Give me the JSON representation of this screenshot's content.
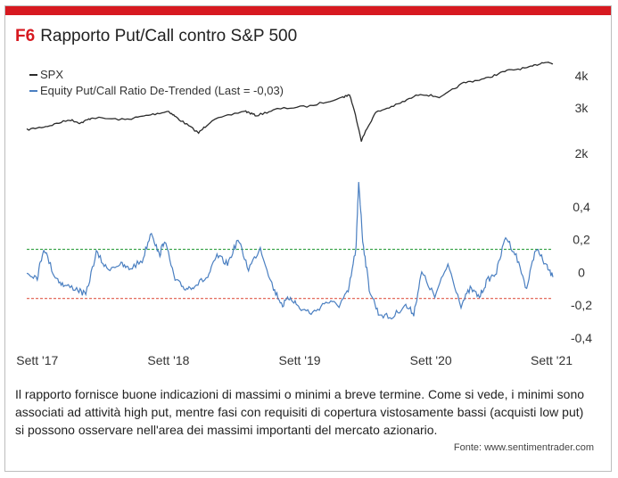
{
  "figure": {
    "label": "F6",
    "title": "Rapporto Put/Call contro S&P 500"
  },
  "caption": "Il rapporto fornisce buone indicazioni di massimi o minimi a breve termine. Come si vede, i minimi sono associati ad attività high put, mentre fasi con requisiti di copertura vistosamente bassi (acquisti low put) si possono osservare nell'area dei massimi importanti del mercato azionario.",
  "source": "Fonte: www.sentimentrader.com",
  "colors": {
    "accent": "#d71920",
    "spx": "#2b2b2b",
    "ratio": "#4a7fc1",
    "upper_line": "#2e9e3e",
    "lower_line": "#e05a4a"
  },
  "chart_data": [
    {
      "type": "line",
      "panel": "top",
      "legend": [
        "SPX"
      ],
      "ytick_labels": [
        "4k",
        "3k",
        "2k"
      ],
      "yticks": [
        4000,
        3000,
        2000
      ],
      "ylim": [
        2000,
        4500
      ],
      "y_scale": "log",
      "series": [
        {
          "name": "SPX",
          "x": [
            2017.67,
            2017.83,
            2018.0,
            2018.08,
            2018.17,
            2018.42,
            2018.58,
            2018.75,
            2018.83,
            2018.98,
            2019.08,
            2019.33,
            2019.42,
            2019.58,
            2019.83,
            2020.08,
            2020.13,
            2020.22,
            2020.33,
            2020.5,
            2020.67,
            2020.83,
            2021.0,
            2021.17,
            2021.33,
            2021.5,
            2021.62,
            2021.68
          ],
          "values": [
            2470,
            2550,
            2700,
            2620,
            2750,
            2700,
            2800,
            2910,
            2710,
            2400,
            2680,
            2920,
            2800,
            2970,
            3050,
            3300,
            3380,
            2240,
            2880,
            3100,
            3400,
            3300,
            3750,
            3900,
            4180,
            4300,
            4530,
            4450
          ]
        }
      ]
    },
    {
      "type": "line",
      "panel": "bottom",
      "legend": [
        "Equity Put/Call Ratio De-Trended (Last = -0,03)"
      ],
      "ytick_labels": [
        "0,4",
        "0,2",
        "0",
        "-0,2",
        "-0,4"
      ],
      "yticks": [
        0.4,
        0.2,
        0,
        -0.2,
        -0.4
      ],
      "ylim": [
        -0.45,
        0.6
      ],
      "hlines": [
        0.14,
        -0.16
      ],
      "xticks": [
        "Sett '17",
        "Sett '18",
        "Sett '19",
        "Sett '20",
        "Sett '21"
      ],
      "series": [
        {
          "name": "Equity Put/Call Ratio De-Trended (Last = -0,03)",
          "x": [
            2017.67,
            2017.75,
            2017.8,
            2017.88,
            2017.95,
            2018.05,
            2018.12,
            2018.2,
            2018.28,
            2018.38,
            2018.45,
            2018.55,
            2018.62,
            2018.68,
            2018.72,
            2018.8,
            2018.88,
            2018.95,
            2019.05,
            2019.12,
            2019.2,
            2019.28,
            2019.36,
            2019.45,
            2019.55,
            2019.62,
            2019.68,
            2019.75,
            2019.85,
            2019.95,
            2020.05,
            2020.12,
            2020.18,
            2020.2,
            2020.23,
            2020.28,
            2020.35,
            2020.45,
            2020.55,
            2020.62,
            2020.68,
            2020.78,
            2020.88,
            2020.98,
            2021.05,
            2021.12,
            2021.18,
            2021.25,
            2021.32,
            2021.4,
            2021.48,
            2021.55,
            2021.62,
            2021.68
          ],
          "values": [
            0.0,
            -0.03,
            0.15,
            -0.02,
            -0.08,
            -0.1,
            -0.14,
            0.12,
            0.02,
            0.05,
            0.02,
            0.07,
            0.25,
            0.1,
            0.2,
            -0.05,
            -0.1,
            -0.08,
            -0.03,
            0.1,
            0.05,
            0.2,
            0.02,
            0.15,
            -0.1,
            -0.2,
            -0.15,
            -0.22,
            -0.25,
            -0.18,
            -0.2,
            -0.12,
            0.15,
            0.56,
            0.2,
            -0.1,
            -0.25,
            -0.28,
            -0.2,
            -0.25,
            0.0,
            -0.15,
            0.05,
            -0.2,
            -0.1,
            -0.15,
            -0.05,
            0.0,
            0.22,
            0.1,
            -0.1,
            0.15,
            0.05,
            -0.03
          ]
        }
      ]
    }
  ]
}
